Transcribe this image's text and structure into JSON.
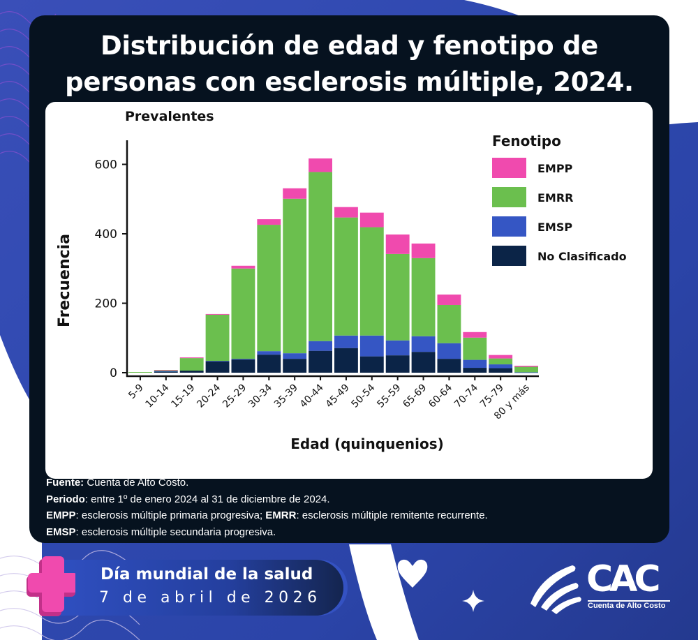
{
  "header": {
    "title_line1": "Distribución de edad y fenotipo de",
    "title_line2": "personas con esclerosis múltiple, 2024."
  },
  "chart_data": {
    "type": "bar",
    "stacked": true,
    "title": "Prevalentes",
    "xlabel": "Edad (quinquenios)",
    "ylabel": "Frecuencia",
    "ylim": [
      0,
      670
    ],
    "yticks": [
      0,
      200,
      400,
      600
    ],
    "grid": false,
    "legend_title": "Fenotipo",
    "legend_position": "top-right",
    "categories": [
      "5-9",
      "10-14",
      "15-19",
      "20-24",
      "25-29",
      "30-34",
      "35-39",
      "40-44",
      "45-49",
      "50-54",
      "55-59",
      "65-69",
      "60-64",
      "70-74",
      "75-79",
      "80 y más"
    ],
    "series": [
      {
        "name": "No Clasificado",
        "color": "#0b2447",
        "values": [
          0,
          3,
          6,
          33,
          38,
          52,
          40,
          63,
          71,
          47,
          50,
          60,
          40,
          14,
          13,
          0
        ]
      },
      {
        "name": "EMSP",
        "color": "#3556c4",
        "values": [
          0,
          1,
          0,
          1,
          2,
          10,
          16,
          28,
          36,
          60,
          43,
          45,
          45,
          23,
          11,
          1
        ]
      },
      {
        "name": "EMRR",
        "color": "#6bbf4e",
        "values": [
          2,
          3,
          36,
          133,
          260,
          364,
          445,
          487,
          340,
          312,
          249,
          225,
          110,
          64,
          17,
          16
        ]
      },
      {
        "name": "EMPP",
        "color": "#f04aae",
        "values": [
          0,
          1,
          2,
          2,
          8,
          16,
          30,
          39,
          30,
          42,
          56,
          42,
          30,
          16,
          10,
          3
        ]
      }
    ],
    "legend_order": [
      "EMPP",
      "EMRR",
      "EMSP",
      "No Clasificado"
    ]
  },
  "notes": {
    "source_label": "Fuente:",
    "source_text": " Cuenta de Alto Costo.",
    "period_label": "Periodo",
    "period_text": ": entre 1º de enero 2024 al 31 de diciembre de 2024.",
    "empp_label": "EMPP",
    "empp_text": ": esclerosis múltiple primaria progresiva; ",
    "emrr_label": "EMRR",
    "emrr_text": ": esclerosis múltiple remitente recurrente.",
    "emsp_label": "EMSP",
    "emsp_text": ": esclerosis múltiple secundaria progresiva."
  },
  "footer": {
    "event_title": "Día mundial de la salud",
    "event_date": "7 de abril de 2026",
    "logo_text": "CAC",
    "logo_subtitle": "Cuenta de Alto Costo"
  }
}
